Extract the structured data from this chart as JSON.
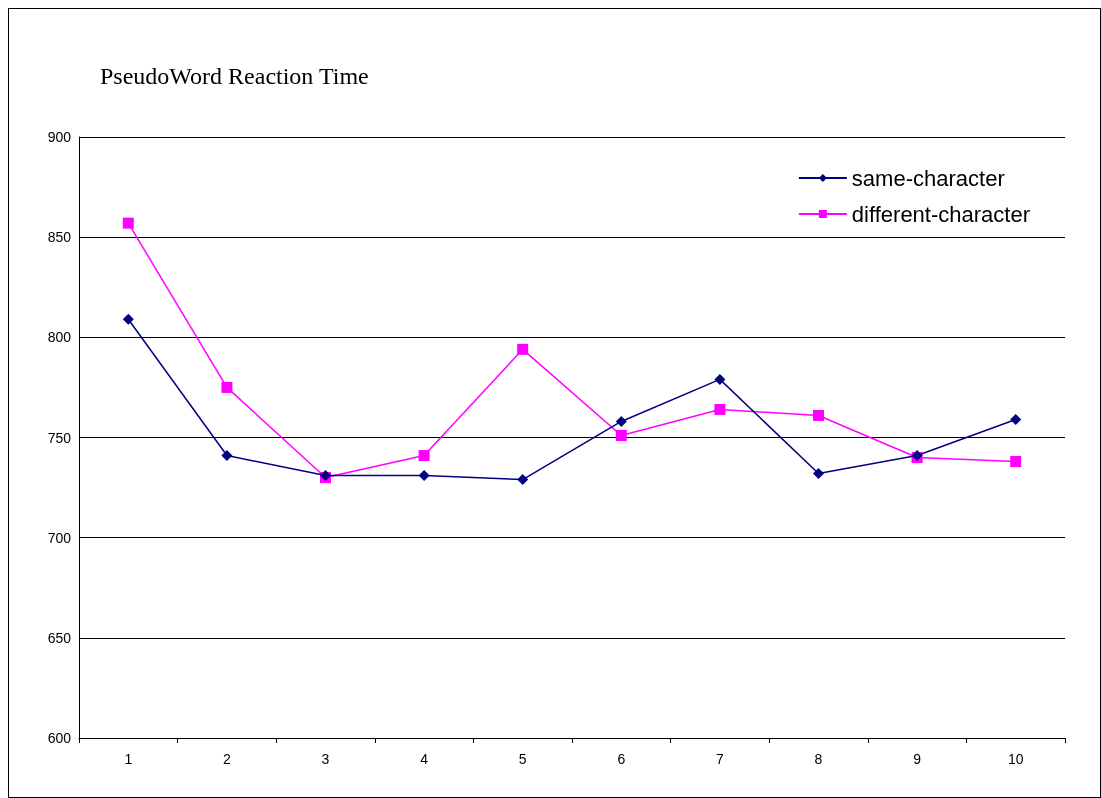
{
  "chart_data": {
    "type": "line",
    "title": "PseudoWord Reaction Time",
    "categories": [
      "1",
      "2",
      "3",
      "4",
      "5",
      "6",
      "7",
      "8",
      "9",
      "10"
    ],
    "series": [
      {
        "name": "same-character",
        "color": "#000080",
        "marker": "diamond",
        "values": [
          809,
          741,
          731,
          731,
          729,
          758,
          779,
          732,
          741,
          759
        ]
      },
      {
        "name": "different-character",
        "color": "#ff00ff",
        "marker": "square",
        "values": [
          857,
          775,
          730,
          741,
          794,
          751,
          764,
          761,
          740,
          738
        ]
      }
    ],
    "ylim": [
      600,
      900
    ],
    "yticks": [
      600,
      650,
      700,
      750,
      800,
      850,
      900
    ],
    "grid": "y",
    "legend": "top right",
    "line_style": "solid"
  }
}
